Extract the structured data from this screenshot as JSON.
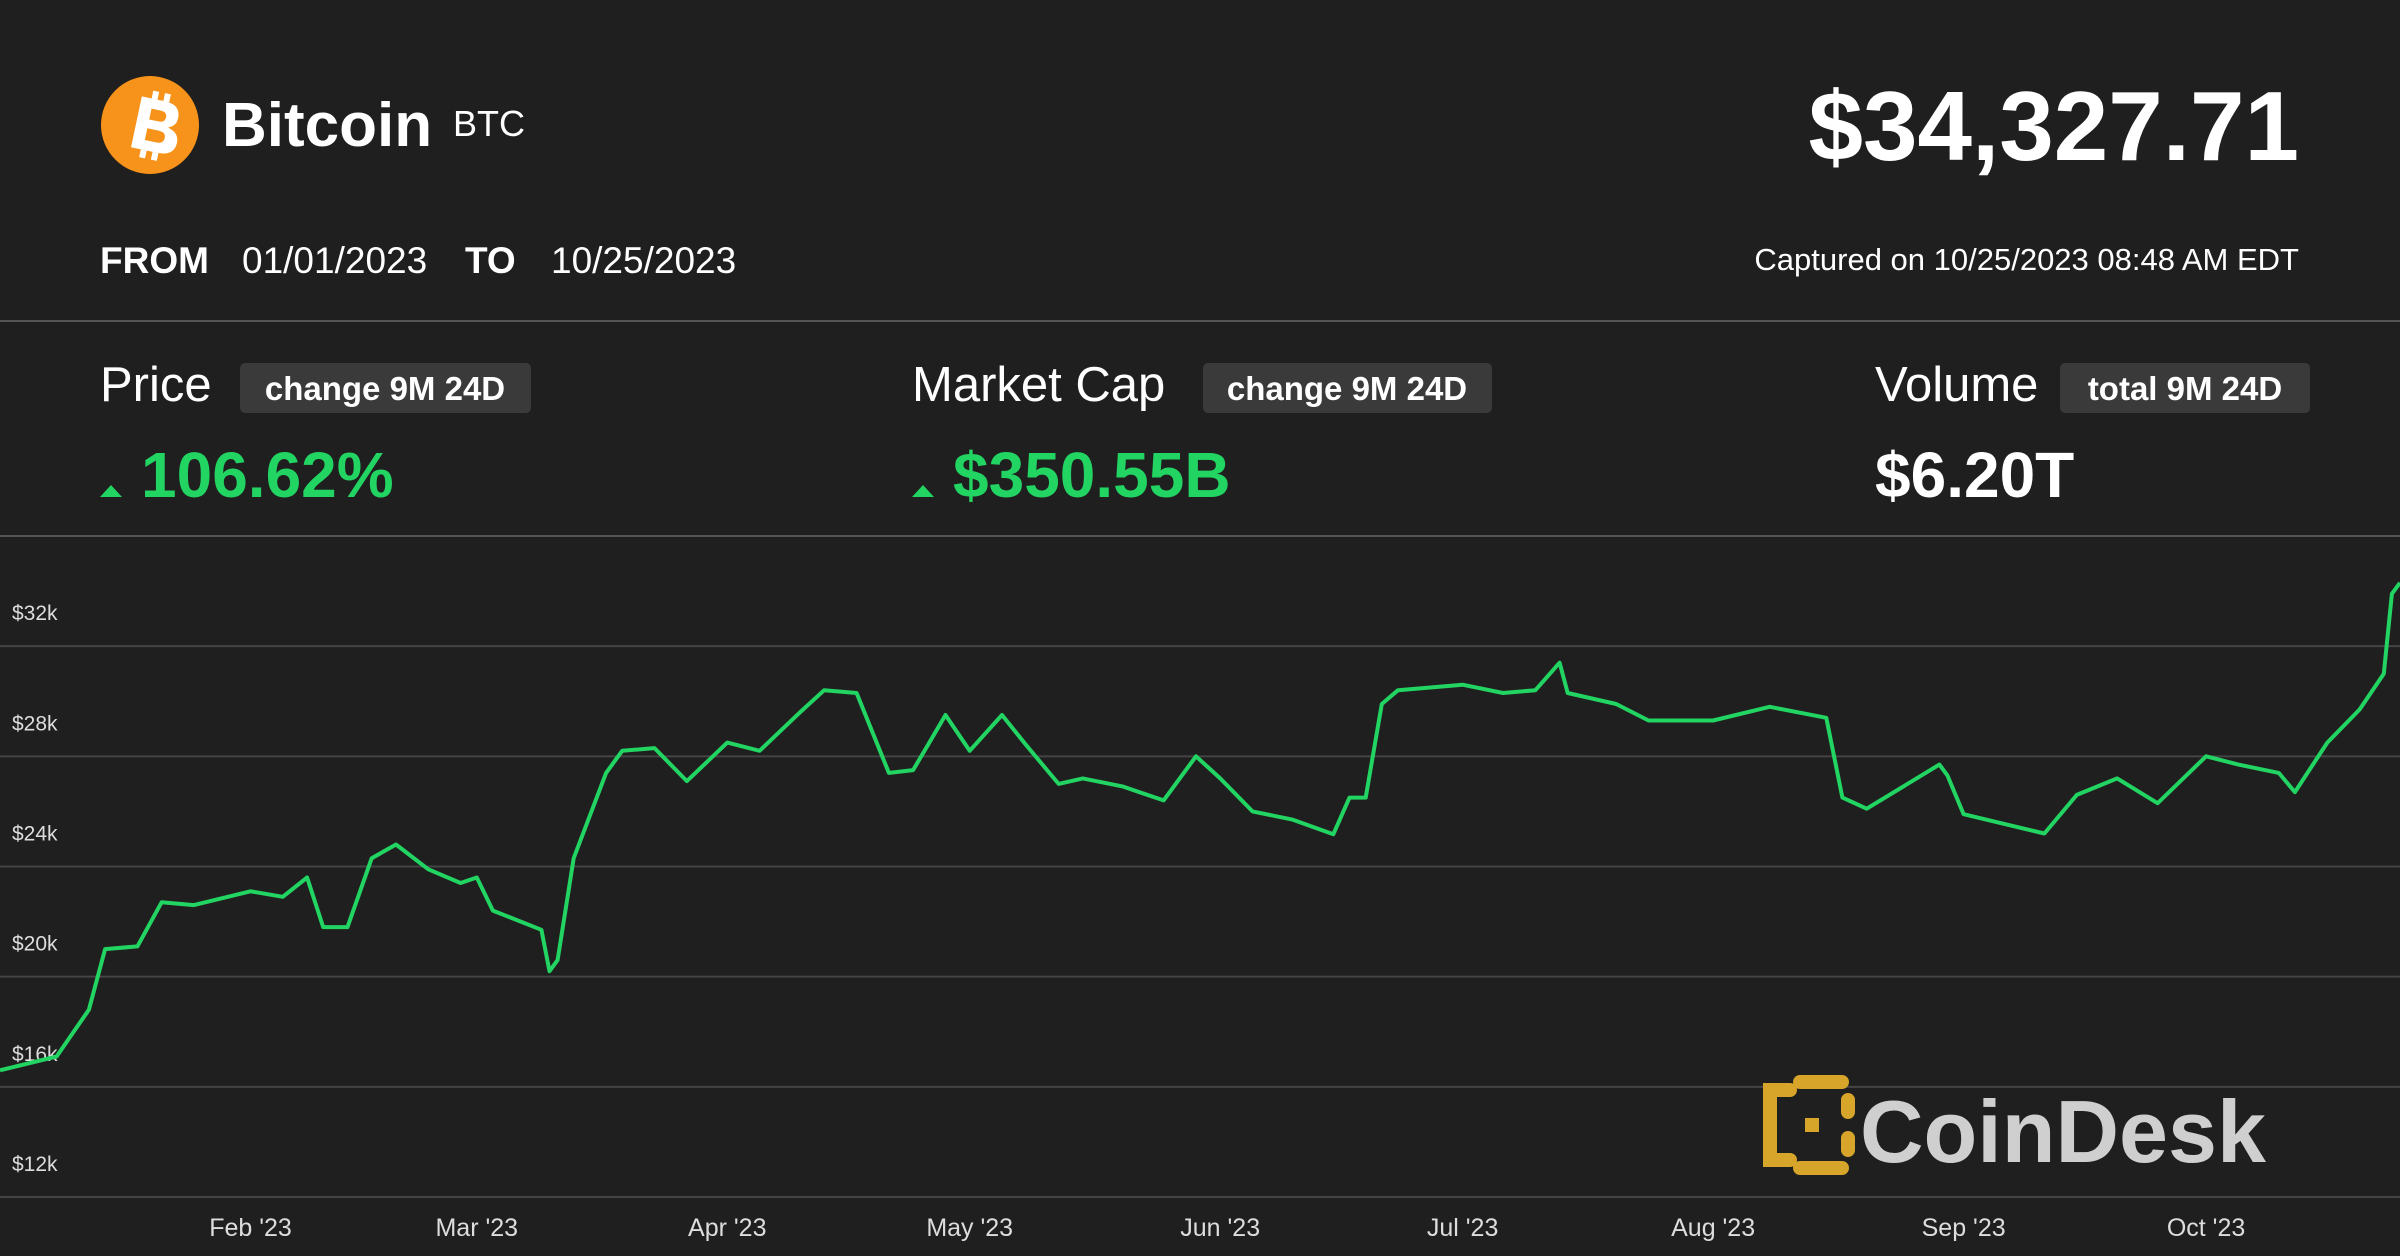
{
  "header": {
    "name": "Bitcoin",
    "symbol": "BTC",
    "price": "$34,327.71",
    "from_label": "FROM",
    "from_date": "01/01/2023",
    "to_label": "TO",
    "to_date": "10/25/2023",
    "captured": "Captured on 10/25/2023 08:48 AM EDT"
  },
  "stats": [
    {
      "label": "Price",
      "badge": "change 9M 24D",
      "value": "106.62%"
    },
    {
      "label": "Market Cap",
      "badge": "change 9M 24D",
      "value": "$350.55B"
    },
    {
      "label": "Volume",
      "badge": "total 9M 24D",
      "value": "$6.20T"
    }
  ],
  "brand": "CoinDesk",
  "chart_data": {
    "type": "line",
    "color": "#22d462",
    "grid": true,
    "x": [
      "2023-01-01",
      "2023-01-08",
      "2023-01-12",
      "2023-01-14",
      "2023-01-18",
      "2023-01-21",
      "2023-01-25",
      "2023-02-01",
      "2023-02-05",
      "2023-02-08",
      "2023-02-10",
      "2023-02-13",
      "2023-02-16",
      "2023-02-19",
      "2023-02-23",
      "2023-02-27",
      "2023-03-01",
      "2023-03-03",
      "2023-03-09",
      "2023-03-10",
      "2023-03-11",
      "2023-03-13",
      "2023-03-17",
      "2023-03-19",
      "2023-03-23",
      "2023-03-27",
      "2023-04-01",
      "2023-04-05",
      "2023-04-10",
      "2023-04-13",
      "2023-04-17",
      "2023-04-21",
      "2023-04-24",
      "2023-04-26",
      "2023-04-28",
      "2023-05-01",
      "2023-05-05",
      "2023-05-08",
      "2023-05-12",
      "2023-05-15",
      "2023-05-20",
      "2023-05-25",
      "2023-05-29",
      "2023-06-01",
      "2023-06-05",
      "2023-06-10",
      "2023-06-15",
      "2023-06-17",
      "2023-06-19",
      "2023-06-21",
      "2023-06-23",
      "2023-07-01",
      "2023-07-06",
      "2023-07-10",
      "2023-07-13",
      "2023-07-14",
      "2023-07-20",
      "2023-07-24",
      "2023-08-01",
      "2023-08-08",
      "2023-08-15",
      "2023-08-17",
      "2023-08-20",
      "2023-08-29",
      "2023-08-30",
      "2023-09-01",
      "2023-09-11",
      "2023-09-15",
      "2023-09-20",
      "2023-09-25",
      "2023-10-01",
      "2023-10-05",
      "2023-10-10",
      "2023-10-12",
      "2023-10-16",
      "2023-10-20",
      "2023-10-23",
      "2023-10-24",
      "2023-10-25"
    ],
    "values": [
      16600,
      17100,
      18800,
      21000,
      21100,
      22700,
      22600,
      23100,
      22900,
      23600,
      21800,
      21800,
      24300,
      24800,
      23900,
      23400,
      23600,
      22400,
      21700,
      20200,
      20600,
      24300,
      27400,
      28200,
      28300,
      27100,
      28500,
      28200,
      29600,
      30400,
      30300,
      27400,
      27500,
      28500,
      29500,
      28200,
      29500,
      28400,
      27000,
      27200,
      26900,
      26400,
      28000,
      27200,
      26000,
      25700,
      25170,
      26500,
      26500,
      29900,
      30400,
      30600,
      30300,
      30400,
      31400,
      30300,
      29900,
      29300,
      29300,
      29800,
      29400,
      26500,
      26100,
      27700,
      27300,
      25900,
      25200,
      26600,
      27200,
      26300,
      28000,
      27700,
      27400,
      26700,
      28500,
      29700,
      31000,
      33900,
      34300
    ],
    "xlim": [
      "2023-01-01",
      "2023-10-25"
    ],
    "xticks": [
      {
        "value": "2023-02-01",
        "label": "Feb '23"
      },
      {
        "value": "2023-03-01",
        "label": "Mar '23"
      },
      {
        "value": "2023-04-01",
        "label": "Apr '23"
      },
      {
        "value": "2023-05-01",
        "label": "May '23"
      },
      {
        "value": "2023-06-01",
        "label": "Jun '23"
      },
      {
        "value": "2023-07-01",
        "label": "Jul '23"
      },
      {
        "value": "2023-08-01",
        "label": "Aug '23"
      },
      {
        "value": "2023-09-01",
        "label": "Sep '23"
      },
      {
        "value": "2023-10-01",
        "label": "Oct '23"
      }
    ],
    "ylim": [
      12000,
      36000
    ],
    "yticks": [
      {
        "value": 12000,
        "label": "$12k"
      },
      {
        "value": 16000,
        "label": "$16k"
      },
      {
        "value": 20000,
        "label": "$20k"
      },
      {
        "value": 24000,
        "label": "$24k"
      },
      {
        "value": 28000,
        "label": "$28k"
      },
      {
        "value": 32000,
        "label": "$32k"
      }
    ]
  }
}
